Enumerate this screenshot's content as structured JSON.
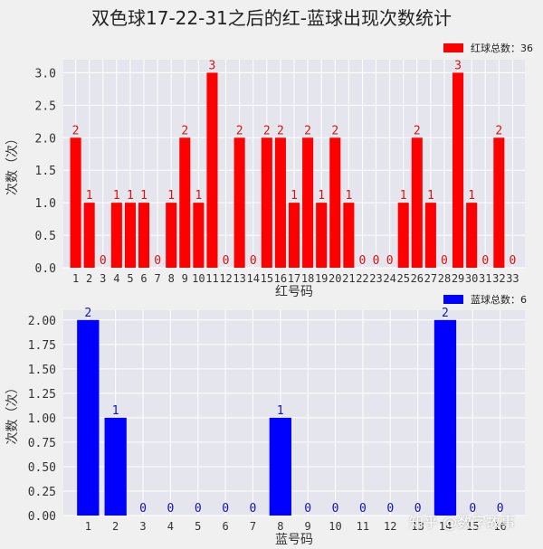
{
  "title": "双色球17-22-31之后的红-蓝球出现次数统计",
  "watermark": "知乎 @数字故事",
  "chart_data": [
    {
      "type": "bar",
      "color": "#ff0000",
      "xlabel": "红号码",
      "ylabel": "次数（次）",
      "legend": "红球总数：36",
      "legend_position": "top-right",
      "grid": true,
      "ylim": [
        0,
        3.2
      ],
      "yticks": [
        "0.0",
        "0.5",
        "1.0",
        "1.5",
        "2.0",
        "2.5",
        "3.0"
      ],
      "categories": [
        "1",
        "2",
        "3",
        "4",
        "5",
        "6",
        "7",
        "8",
        "9",
        "10",
        "11",
        "12",
        "13",
        "14",
        "15",
        "16",
        "17",
        "18",
        "19",
        "20",
        "21",
        "22",
        "23",
        "24",
        "25",
        "26",
        "27",
        "28",
        "29",
        "30",
        "31",
        "32",
        "33"
      ],
      "values": [
        2,
        1,
        0,
        1,
        1,
        1,
        0,
        1,
        2,
        1,
        3,
        0,
        2,
        0,
        2,
        2,
        1,
        2,
        1,
        2,
        1,
        0,
        0,
        0,
        1,
        2,
        1,
        0,
        3,
        1,
        0,
        2,
        0
      ]
    },
    {
      "type": "bar",
      "color": "#0000ff",
      "xlabel": "蓝号码",
      "ylabel": "次数（次）",
      "legend": "蓝球总数：6",
      "legend_position": "top-right",
      "grid": true,
      "ylim": [
        0,
        2.1
      ],
      "yticks": [
        "0.00",
        "0.25",
        "0.50",
        "0.75",
        "1.00",
        "1.25",
        "1.50",
        "1.75",
        "2.00"
      ],
      "categories": [
        "1",
        "2",
        "3",
        "4",
        "5",
        "6",
        "7",
        "8",
        "9",
        "10",
        "11",
        "12",
        "13",
        "14",
        "15",
        "16"
      ],
      "values": [
        2,
        1,
        0,
        0,
        0,
        0,
        0,
        1,
        0,
        0,
        0,
        0,
        0,
        2,
        0,
        0
      ]
    }
  ]
}
